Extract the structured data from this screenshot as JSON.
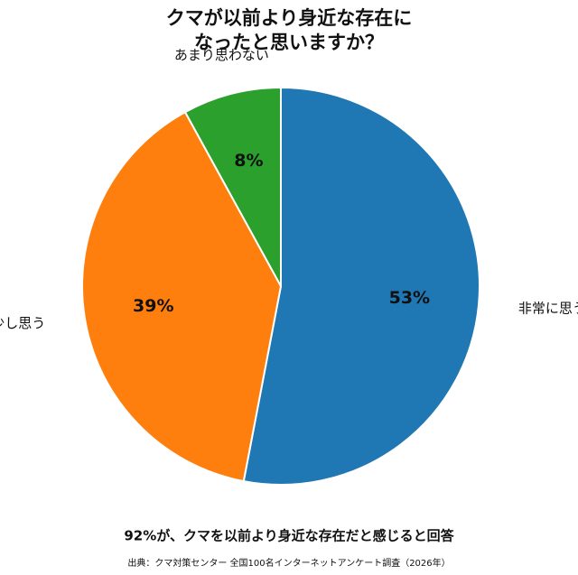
{
  "chart_data": {
    "type": "pie",
    "title": [
      "クマが以前より身近な存在に",
      "なったと思いますか？"
    ],
    "categories": [
      "非常に思う",
      "少し思う",
      "あまり思わない"
    ],
    "values": [
      53,
      39,
      8
    ],
    "value_labels": [
      "53%",
      "39%",
      "8%"
    ],
    "colors": [
      "#1f77b4",
      "#ff7f0e",
      "#2ca02c"
    ],
    "summary": "92%が、クマを以前より身近な存在だと感じると回答",
    "source": "出典：クマ対策センター 全国100名インターネットアンケート調査（2026年）"
  }
}
